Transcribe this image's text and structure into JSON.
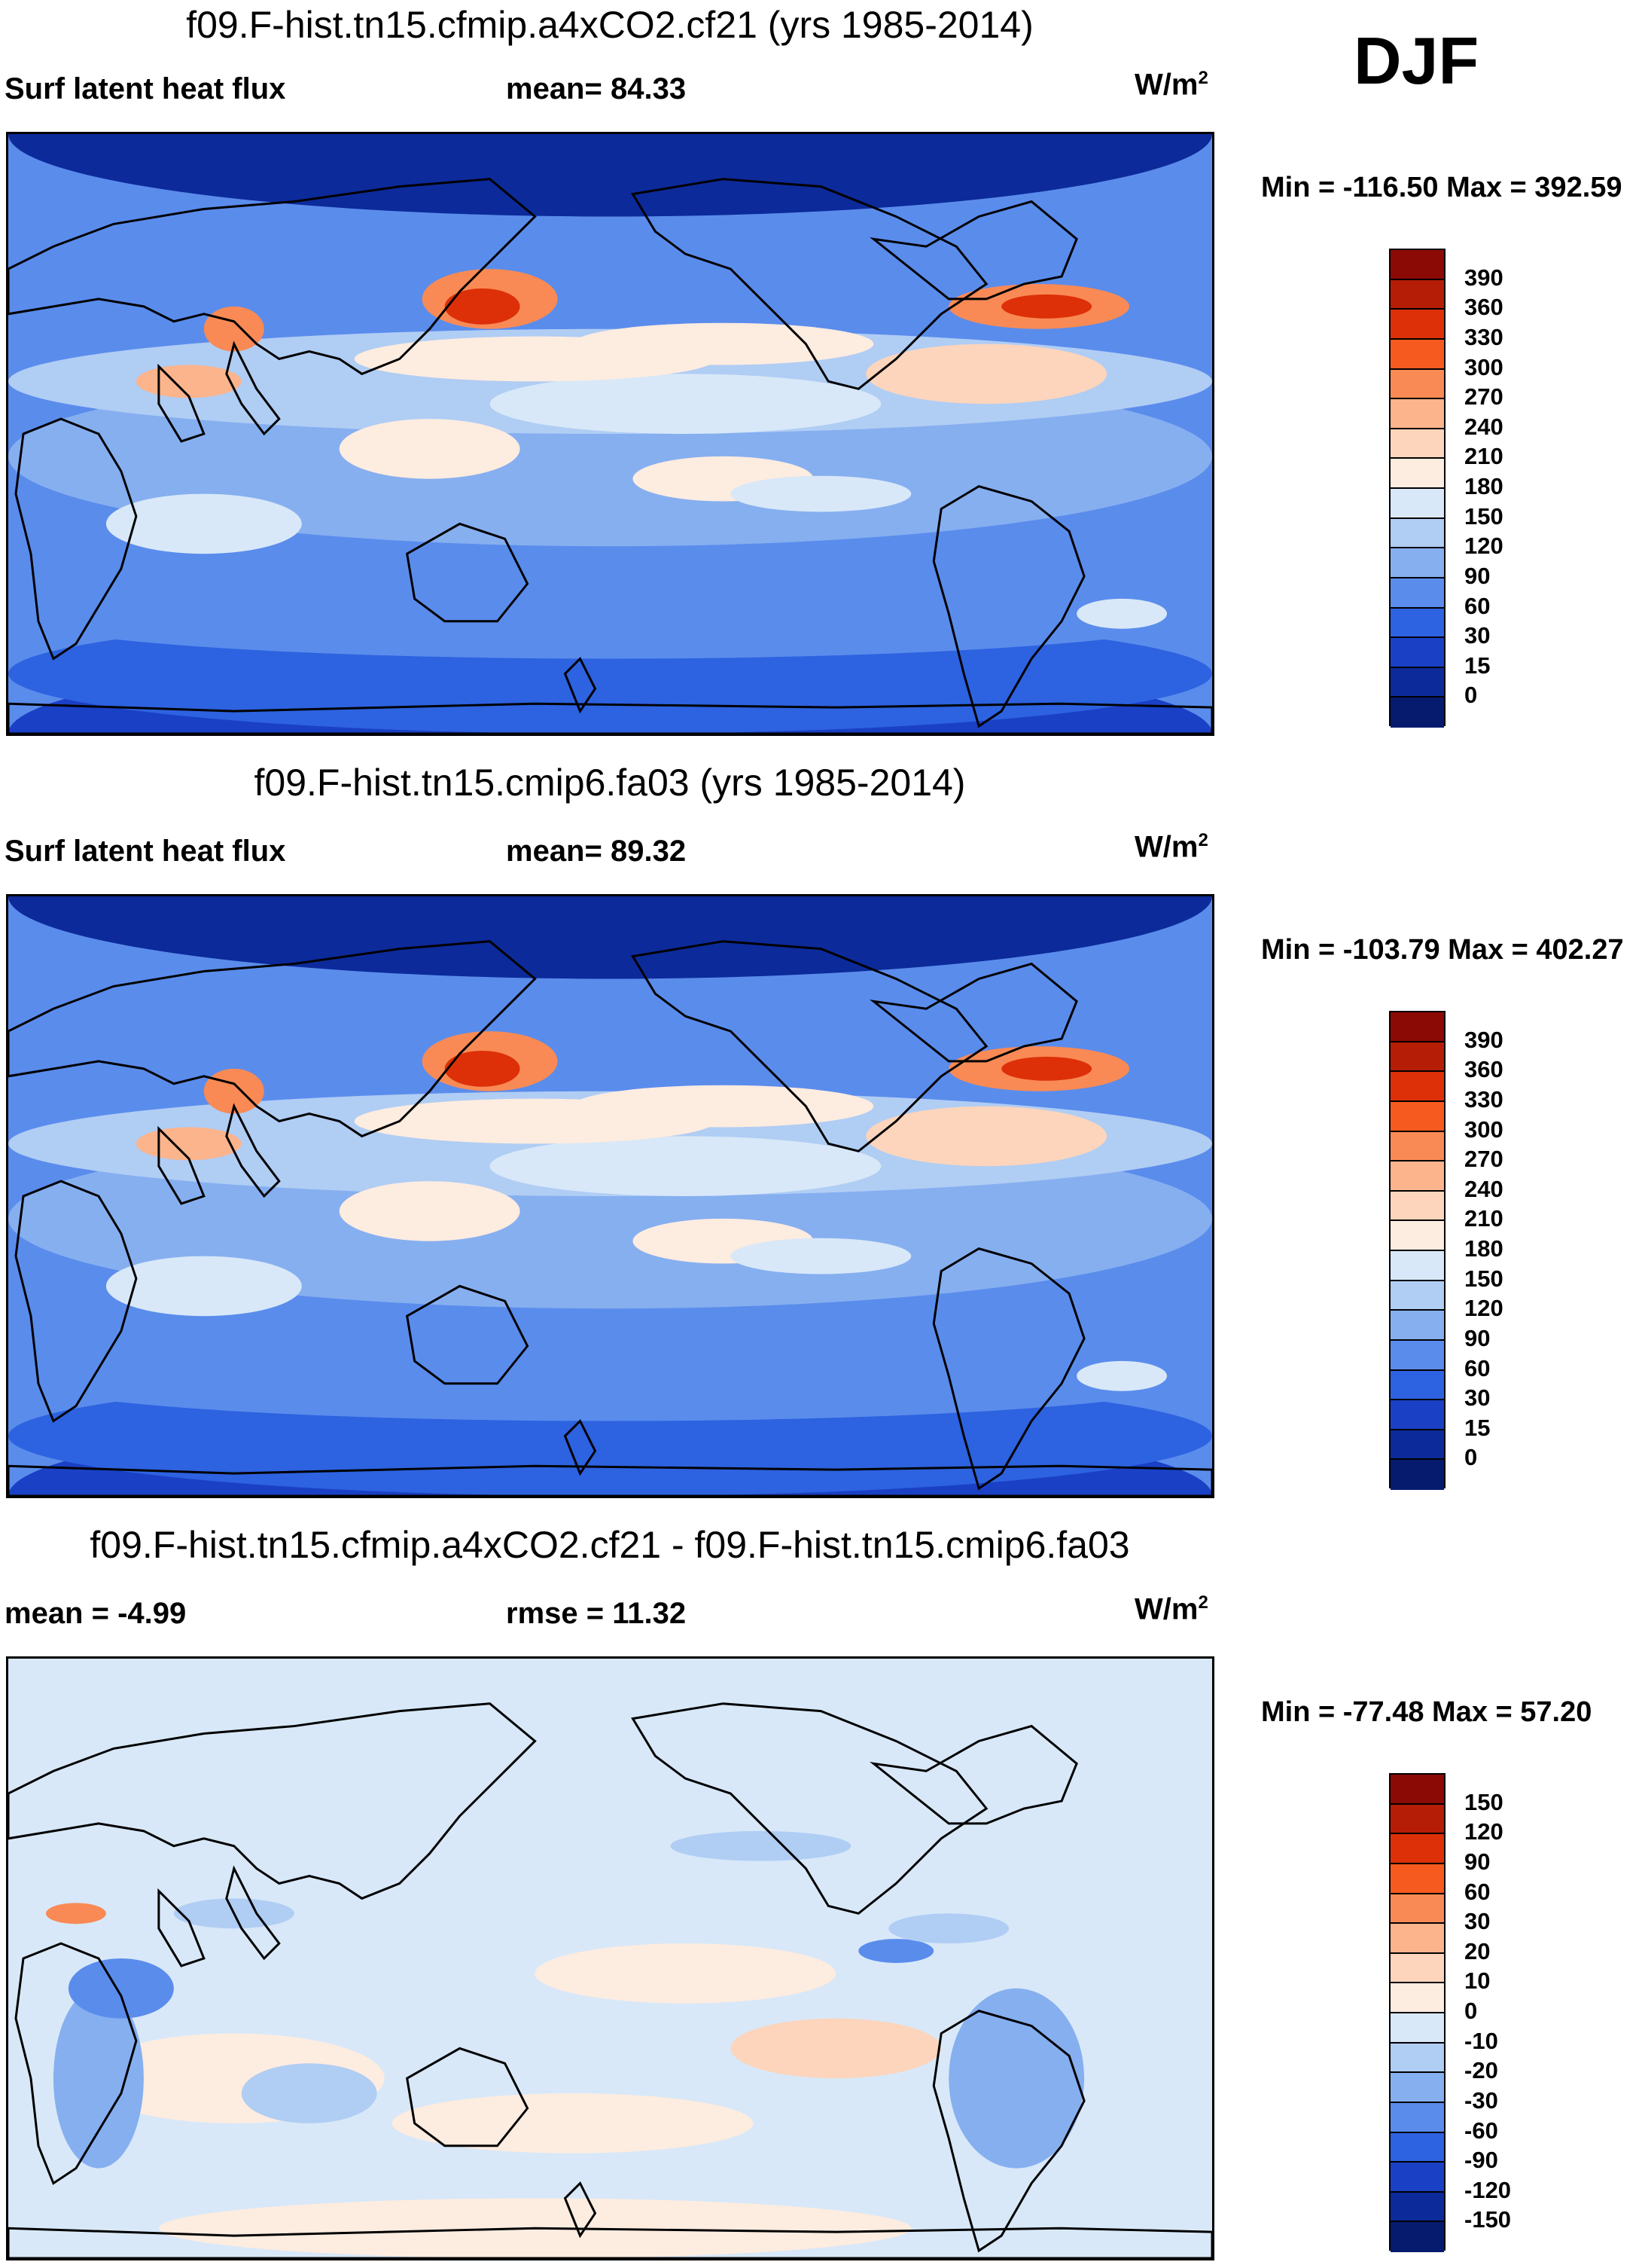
{
  "season": "DJF",
  "panels": [
    {
      "title": "f09.F-hist.tn15.cfmip.a4xCO2.cf21 (yrs 1985-2014)",
      "left_label": "Surf latent heat flux",
      "center_label": "mean=  84.33",
      "units": "W/m",
      "units_sup": "2",
      "minmax": "Min = -116.50 Max = 392.59",
      "colorbar_labels": [
        "390",
        "360",
        "330",
        "300",
        "270",
        "240",
        "210",
        "180",
        "150",
        "120",
        "90",
        "60",
        "30",
        "15",
        "0"
      ],
      "colorbar_colors": [
        "#8b0a06",
        "#b61d07",
        "#dd3008",
        "#f75a1f",
        "#f98a55",
        "#fbb48c",
        "#fcd5bc",
        "#fdece0",
        "#d8e8f8",
        "#b0cdf4",
        "#86aff0",
        "#5a8cec",
        "#2d62e0",
        "#1a40c5",
        "#0c2a9a",
        "#061a6e"
      ],
      "palette": "absolute"
    },
    {
      "title": "f09.F-hist.tn15.cmip6.fa03 (yrs 1985-2014)",
      "left_label": "Surf latent heat flux",
      "center_label": "mean=  89.32",
      "units": "W/m",
      "units_sup": "2",
      "minmax": "Min = -103.79 Max = 402.27",
      "colorbar_labels": [
        "390",
        "360",
        "330",
        "300",
        "270",
        "240",
        "210",
        "180",
        "150",
        "120",
        "90",
        "60",
        "30",
        "15",
        "0"
      ],
      "colorbar_colors": [
        "#8b0a06",
        "#b61d07",
        "#dd3008",
        "#f75a1f",
        "#f98a55",
        "#fbb48c",
        "#fcd5bc",
        "#fdece0",
        "#d8e8f8",
        "#b0cdf4",
        "#86aff0",
        "#5a8cec",
        "#2d62e0",
        "#1a40c5",
        "#0c2a9a",
        "#061a6e"
      ],
      "palette": "absolute"
    },
    {
      "title": "f09.F-hist.tn15.cfmip.a4xCO2.cf21 - f09.F-hist.tn15.cmip6.fa03",
      "left_label": "mean =  -4.99",
      "center_label": "rmse =  11.32",
      "units": "W/m",
      "units_sup": "2",
      "minmax": "Min = -77.48 Max =  57.20",
      "colorbar_labels": [
        "150",
        "120",
        "90",
        "60",
        "30",
        "20",
        "10",
        "0",
        "-10",
        "-20",
        "-30",
        "-60",
        "-90",
        "-120",
        "-150"
      ],
      "colorbar_colors": [
        "#8b0a06",
        "#b61d07",
        "#dd3008",
        "#f75a1f",
        "#f98a55",
        "#fbb48c",
        "#fcd5bc",
        "#fdece0",
        "#d8e8f8",
        "#b0cdf4",
        "#86aff0",
        "#5a8cec",
        "#2d62e0",
        "#1a40c5",
        "#0c2a9a",
        "#061a6e"
      ],
      "palette": "difference"
    }
  ]
}
